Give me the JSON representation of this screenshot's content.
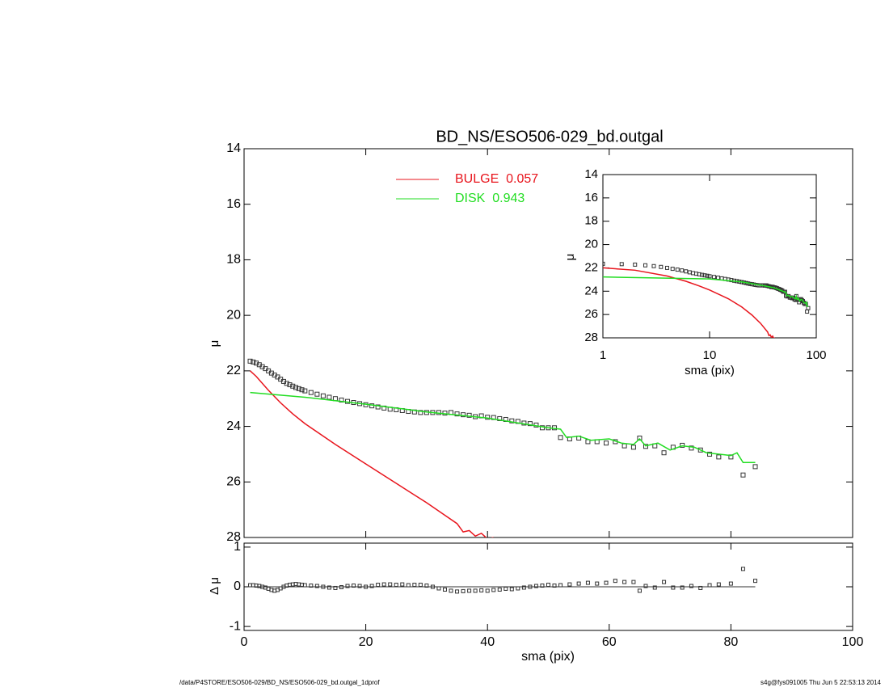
{
  "chart_data": [
    {
      "type": "line",
      "title": "BD_NS/ESO506-029_bd.outgal",
      "ylabel": "μ",
      "ylim": [
        14,
        28
      ],
      "y_reversed": true,
      "yticks": [
        14,
        16,
        18,
        20,
        22,
        24,
        26,
        28
      ],
      "series": [
        {
          "marker": "square",
          "color": "#333333",
          "x": [
            1,
            1.5,
            2,
            2.5,
            3,
            3.5,
            4,
            4.5,
            5,
            5.5,
            6,
            6.5,
            7,
            7.5,
            8,
            8.5,
            9,
            9.5,
            10,
            11,
            12,
            13,
            14,
            15,
            16,
            17,
            18,
            19,
            20,
            21,
            22,
            23,
            24,
            25,
            26,
            27,
            28,
            29,
            30,
            31,
            32,
            33,
            34,
            35,
            36,
            37,
            38,
            39,
            40,
            41,
            42,
            43,
            44,
            45,
            46,
            47,
            48,
            49,
            50,
            51,
            52,
            53.5,
            55,
            56.5,
            58,
            59.5,
            61,
            62.5,
            64,
            65,
            66,
            67.5,
            69,
            70.5,
            72,
            73.5,
            75,
            76.5,
            78,
            80,
            82,
            84
          ],
          "values": [
            21.65,
            21.68,
            21.72,
            21.78,
            21.85,
            21.92,
            22.0,
            22.08,
            22.15,
            22.22,
            22.3,
            22.38,
            22.45,
            22.5,
            22.55,
            22.6,
            22.64,
            22.68,
            22.72,
            22.78,
            22.84,
            22.9,
            22.95,
            23.0,
            23.05,
            23.1,
            23.14,
            23.18,
            23.22,
            23.26,
            23.3,
            23.34,
            23.38,
            23.4,
            23.43,
            23.46,
            23.48,
            23.5,
            23.5,
            23.5,
            23.5,
            23.52,
            23.5,
            23.55,
            23.58,
            23.6,
            23.65,
            23.62,
            23.67,
            23.68,
            23.72,
            23.75,
            23.8,
            23.82,
            23.88,
            23.9,
            23.95,
            24.05,
            24.05,
            24.05,
            24.4,
            24.45,
            24.42,
            24.55,
            24.55,
            24.6,
            24.55,
            24.7,
            24.75,
            24.42,
            24.72,
            24.7,
            24.95,
            24.75,
            24.68,
            24.78,
            24.85,
            25.0,
            25.1,
            25.1,
            25.75,
            25.45
          ]
        },
        {
          "name": "BULGE  0.057",
          "color": "#e8141c",
          "x": [
            1,
            2,
            4,
            6,
            8,
            10,
            15,
            20,
            25,
            30,
            35,
            36,
            37,
            38,
            39,
            40,
            41
          ],
          "values": [
            22.0,
            22.2,
            22.7,
            23.15,
            23.55,
            23.9,
            24.65,
            25.35,
            26.05,
            26.75,
            27.5,
            27.8,
            27.75,
            27.95,
            27.85,
            28.05,
            28.0
          ]
        },
        {
          "name": "DISK  0.943",
          "color": "#22dd22",
          "x": [
            1,
            10,
            20,
            30,
            40,
            50,
            52,
            53,
            55,
            57,
            60,
            62,
            64,
            65,
            66,
            68,
            70,
            72,
            74,
            76,
            78,
            80,
            81,
            82,
            84
          ],
          "values": [
            22.78,
            22.95,
            23.2,
            23.48,
            23.7,
            24.05,
            24.1,
            24.4,
            24.35,
            24.5,
            24.45,
            24.6,
            24.65,
            24.45,
            24.7,
            24.6,
            24.85,
            24.7,
            24.75,
            24.95,
            25.0,
            25.05,
            24.95,
            25.3,
            25.3
          ]
        }
      ]
    },
    {
      "type": "residual",
      "ylabel": "Δ μ",
      "xlabel": "sma (pix)",
      "xlim": [
        0,
        100
      ],
      "xticks": [
        0,
        20,
        40,
        60,
        80,
        100
      ],
      "ylim": [
        -1.1,
        1.1
      ],
      "yticks": [
        -1,
        0,
        1
      ],
      "color": "#333333",
      "x": [
        1,
        1.5,
        2,
        2.5,
        3,
        3.5,
        4,
        4.5,
        5,
        5.5,
        6,
        6.5,
        7,
        7.5,
        8,
        8.5,
        9,
        9.5,
        10,
        11,
        12,
        13,
        14,
        15,
        16,
        17,
        18,
        19,
        20,
        21,
        22,
        23,
        24,
        25,
        26,
        27,
        28,
        29,
        30,
        31,
        32,
        33,
        34,
        35,
        36,
        37,
        38,
        39,
        40,
        41,
        42,
        43,
        44,
        45,
        46,
        47,
        48,
        49,
        50,
        51,
        52,
        53.5,
        55,
        56.5,
        58,
        59.5,
        61,
        62.5,
        64,
        65,
        66,
        67.5,
        69,
        70.5,
        72,
        73.5,
        75,
        76.5,
        78,
        80,
        82,
        84
      ],
      "values": [
        0.04,
        0.04,
        0.03,
        0.02,
        0.0,
        -0.02,
        -0.05,
        -0.08,
        -0.1,
        -0.08,
        -0.04,
        0.0,
        0.03,
        0.05,
        0.06,
        0.07,
        0.06,
        0.05,
        0.04,
        0.03,
        0.02,
        0.0,
        -0.02,
        -0.03,
        -0.01,
        0.02,
        0.03,
        0.02,
        0.0,
        0.02,
        0.05,
        0.06,
        0.06,
        0.05,
        0.06,
        0.04,
        0.05,
        0.05,
        0.03,
        0.0,
        -0.04,
        -0.07,
        -0.1,
        -0.12,
        -0.11,
        -0.1,
        -0.1,
        -0.09,
        -0.1,
        -0.08,
        -0.07,
        -0.05,
        -0.06,
        -0.04,
        -0.02,
        0.0,
        0.02,
        0.03,
        0.05,
        0.03,
        0.04,
        0.06,
        0.08,
        0.1,
        0.08,
        0.1,
        0.15,
        0.12,
        0.12,
        -0.1,
        0.02,
        -0.02,
        0.12,
        -0.02,
        -0.02,
        0.02,
        -0.03,
        0.04,
        0.06,
        0.08,
        0.45,
        0.15
      ]
    },
    {
      "type": "inset",
      "xlabel": "sma (pix)",
      "ylabel": "μ",
      "xlim": [
        1,
        100
      ],
      "xscale": "log",
      "xticks": [
        1,
        10,
        100
      ],
      "ylim": [
        14,
        28
      ],
      "y_reversed": true,
      "yticks": [
        14,
        16,
        18,
        20,
        22,
        24,
        26,
        28
      ]
    }
  ],
  "footer": {
    "left": "/data/P4STORE/ESO506-029/BD_NS/ESO506-029_bd.outgal_1dprof",
    "right": "s4g@fys091005  Thu Jun  5 22:53:13 2014"
  }
}
